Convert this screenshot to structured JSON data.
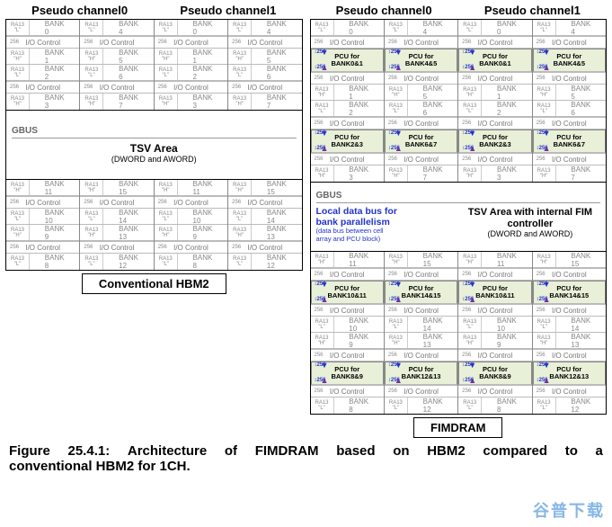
{
  "headers": {
    "pc0": "Pseudo channel0",
    "pc1": "Pseudo channel1"
  },
  "ra_top": "RA13",
  "ra_h": "\"H\"",
  "ra_l": "\"L\"",
  "io_label": "I/O Control",
  "io_num": "256",
  "bgbus": "BG BUS",
  "banks_top": [
    [
      "0",
      "4",
      "0",
      "4"
    ],
    [
      "1",
      "5",
      "1",
      "5"
    ],
    [
      "2",
      "6",
      "2",
      "6"
    ],
    [
      "3",
      "7",
      "3",
      "7"
    ]
  ],
  "banks_bottom": [
    [
      "11",
      "15",
      "11",
      "15"
    ],
    [
      "10",
      "14",
      "10",
      "14"
    ],
    [
      "9",
      "13",
      "9",
      "13"
    ],
    [
      "8",
      "12",
      "8",
      "12"
    ]
  ],
  "pcu_top": [
    [
      "BANK0&1",
      "BANK4&5",
      "BANK0&1",
      "BANK4&5"
    ],
    [
      "BANK2&3",
      "BANK6&7",
      "BANK2&3",
      "BANK6&7"
    ]
  ],
  "pcu_bottom": [
    [
      "BANK10&11",
      "BANK14&15",
      "BANK10&11",
      "BANK14&15"
    ],
    [
      "BANK8&9",
      "BANK12&13",
      "BANK8&9",
      "BANK12&13"
    ]
  ],
  "pcu_prefix": "PCU for",
  "pcu_num": "256",
  "gbus": "GBUS",
  "tsv_left": {
    "title": "TSV Area",
    "sub": "(DWORD and AWORD)"
  },
  "tsv_right": {
    "local1": "Local data bus for",
    "local2": "bank parallelism",
    "local3": "(data bus between cell",
    "local4": "array and PCU block)",
    "title": "TSV Area with internal FIM controller",
    "sub": "(DWORD and AWORD)"
  },
  "label_left": "Conventional HBM2",
  "label_right": "FIMDRAM",
  "caption_l1_words": [
    "Figure",
    "25.4.1:",
    "Architecture",
    "of",
    "FIMDRAM",
    "based",
    "on",
    "HBM2",
    "compared",
    "to",
    "a"
  ],
  "caption_l2": "conventional HBM2 for 1CH.",
  "watermark": "谷普下载",
  "colors": {
    "pcu_bg": "#e8f0d8",
    "link_blue": "#2233cc",
    "purple": "#7030a0",
    "grey": "#888888"
  }
}
